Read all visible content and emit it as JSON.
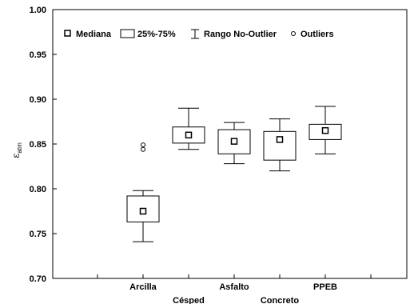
{
  "chart_data": {
    "type": "box",
    "ylabel": "ε",
    "ylabel_sub": "atm",
    "ylim": [
      0.7,
      1.0
    ],
    "y_ticks": [
      "0.70",
      "0.75",
      "0.80",
      "0.85",
      "0.90",
      "0.95",
      "1.00"
    ],
    "legend": {
      "placement": "top-left",
      "items": [
        {
          "label": "Mediana",
          "symbol": "square"
        },
        {
          "label": "25%-75%",
          "symbol": "box"
        },
        {
          "label": "Rango No-Outlier",
          "symbol": "whisker"
        },
        {
          "label": "Outliers",
          "symbol": "circle"
        }
      ]
    },
    "categories": [
      "Arcilla",
      "Césped",
      "Asfalto",
      "Concreto",
      "PPEB"
    ],
    "series": [
      {
        "category": "Arcilla",
        "median": 0.775,
        "q1": 0.763,
        "q3": 0.792,
        "whisker_low": 0.741,
        "whisker_high": 0.798,
        "outliers": [
          0.844,
          0.849
        ]
      },
      {
        "category": "Césped",
        "median": 0.86,
        "q1": 0.851,
        "q3": 0.869,
        "whisker_low": 0.844,
        "whisker_high": 0.89,
        "outliers": []
      },
      {
        "category": "Asfalto",
        "median": 0.853,
        "q1": 0.839,
        "q3": 0.866,
        "whisker_low": 0.828,
        "whisker_high": 0.874,
        "outliers": []
      },
      {
        "category": "Concreto",
        "median": 0.855,
        "q1": 0.832,
        "q3": 0.864,
        "whisker_low": 0.82,
        "whisker_high": 0.878,
        "outliers": []
      },
      {
        "category": "PPEB",
        "median": 0.865,
        "q1": 0.855,
        "q3": 0.872,
        "whisker_low": 0.839,
        "whisker_high": 0.892,
        "outliers": []
      }
    ],
    "grid": false
  }
}
